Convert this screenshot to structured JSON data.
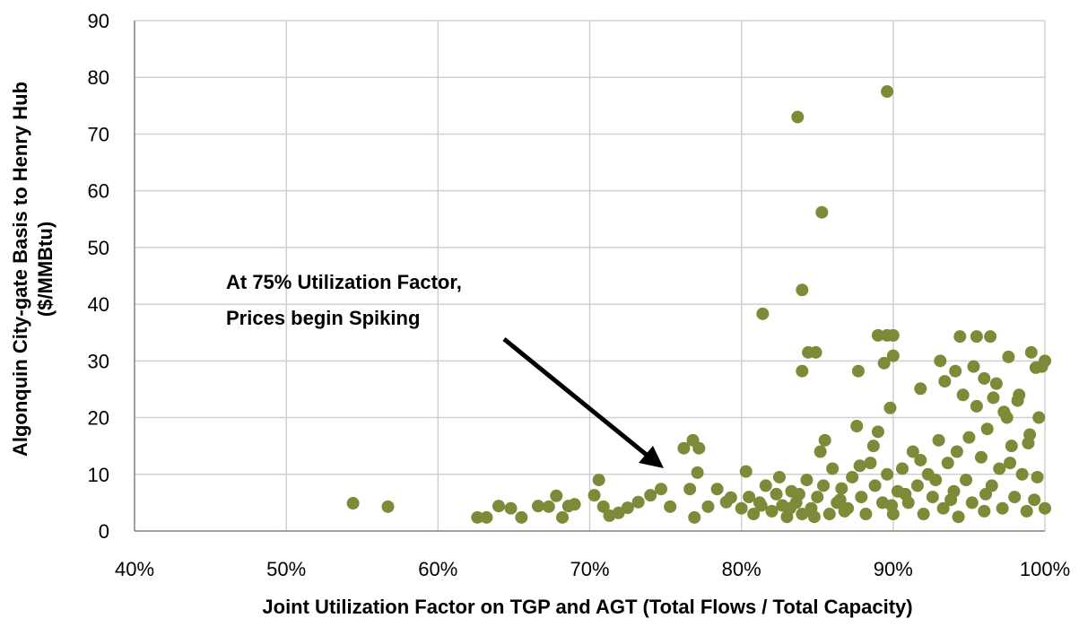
{
  "chart_data": {
    "type": "scatter",
    "xlabel": "Joint Utilization Factor on TGP and AGT (Total Flows / Total Capacity)",
    "ylabel": [
      "Algonquin City-gate Basis to Henry Hub",
      "($/MMBtu)"
    ],
    "annotation": [
      "At 75% Utilization Factor,",
      "Prices begin Spiking"
    ],
    "xlim": [
      40,
      100
    ],
    "ylim": [
      0,
      90
    ],
    "xticks": [
      {
        "value": 40,
        "label": "40%"
      },
      {
        "value": 50,
        "label": "50%"
      },
      {
        "value": 60,
        "label": "60%"
      },
      {
        "value": 70,
        "label": "70%"
      },
      {
        "value": 80,
        "label": "80%"
      },
      {
        "value": 90,
        "label": "90%"
      },
      {
        "value": 100,
        "label": "100%"
      }
    ],
    "yticks": [
      0,
      10,
      20,
      30,
      40,
      50,
      60,
      70,
      80,
      90
    ],
    "grid": true,
    "series": [
      {
        "color": "#7b8b38",
        "x": [
          89.6,
          83.7,
          85.3,
          84.0,
          81.4,
          84.0,
          84.4,
          84.9,
          89.0,
          89.6,
          90.0,
          89.4,
          90.0,
          89.8,
          87.7,
          91.8,
          93.1,
          93.4,
          94.4,
          95.5,
          96.4,
          97.6,
          99.1,
          99.4,
          96.0,
          94.1,
          54.4,
          56.7,
          62.6,
          63.2,
          64.0,
          64.8,
          65.5,
          66.6,
          67.3,
          67.8,
          68.2,
          68.6,
          69.0,
          70.3,
          70.6,
          70.9,
          71.3,
          71.9,
          72.5,
          73.2,
          74.0,
          74.7,
          75.3,
          76.2,
          76.8,
          77.2,
          77.1,
          76.6,
          76.9,
          77.8,
          78.4,
          79.0,
          79.3,
          80,
          80.5,
          80.8,
          81.2,
          81.6,
          82,
          82.3,
          82.7,
          83,
          83.3,
          83.6,
          84,
          84.3,
          84.6,
          85,
          85.2,
          85.5,
          85.8,
          86,
          86.3,
          86.6,
          87,
          87.3,
          87.6,
          87.9,
          88.2,
          88.5,
          88.7,
          89,
          89.3,
          89.6,
          90,
          90.3,
          90.6,
          91,
          91.3,
          91.6,
          92,
          92.3,
          92.6,
          93,
          93.3,
          93.6,
          94,
          94.3,
          94.6,
          94.8,
          95,
          95.2,
          95.5,
          95.8,
          96,
          96.2,
          96.5,
          96.8,
          97,
          97.2,
          97.5,
          97.8,
          98,
          98.2,
          98.5,
          98.8,
          99,
          99.3,
          99.6,
          99.8,
          100,
          100,
          95.3,
          96.6,
          97.3,
          98.3,
          98.9,
          92.8,
          90.8,
          89.9,
          88.8,
          86.8,
          85.4,
          83.8,
          82.5,
          81.3,
          94.2,
          93.8,
          97.7,
          96.1,
          99.5,
          91.8,
          87.8,
          86.5,
          84.8,
          83.2,
          80.3
        ],
        "values": [
          77.5,
          73,
          56.2,
          42.5,
          38.3,
          28.2,
          31.5,
          31.5,
          34.5,
          34.5,
          34.5,
          29.6,
          30.9,
          21.7,
          28.2,
          25.1,
          30,
          26.4,
          34.3,
          34.3,
          34.3,
          30.7,
          31.5,
          28.8,
          26.9,
          28.2,
          4.9,
          4.3,
          2.4,
          2.4,
          4.4,
          4,
          2.4,
          4.4,
          4.3,
          6.2,
          2.4,
          4.4,
          4.7,
          6.3,
          9,
          4.3,
          2.7,
          3.2,
          4.1,
          5.1,
          6.3,
          7.4,
          4.3,
          14.6,
          16,
          14.6,
          10.3,
          7.4,
          2.4,
          4.3,
          7.4,
          5.1,
          5.9,
          4,
          6,
          3,
          5,
          8,
          3.5,
          6.5,
          4.5,
          2.5,
          7,
          5,
          3,
          9,
          4,
          6,
          14,
          16,
          3,
          11,
          5,
          7.5,
          4,
          9.5,
          18.5,
          6,
          3,
          12,
          15,
          17.5,
          5,
          10,
          3,
          7,
          11,
          5,
          14,
          8,
          3,
          10,
          6,
          16,
          4,
          12,
          7,
          2.5,
          24,
          9,
          16.5,
          5,
          22,
          13,
          3.5,
          18,
          8,
          26,
          11,
          4,
          20,
          15,
          6,
          23,
          10,
          3.5,
          17,
          5.5,
          20,
          29,
          4,
          30,
          29,
          23.5,
          21,
          24,
          15.5,
          9,
          6.5,
          4.5,
          8,
          3.5,
          8,
          6.5,
          9.5,
          4.5,
          14,
          5.5,
          12,
          6.5,
          9.5,
          12.5,
          11.5,
          5.5,
          2.5,
          4,
          10.5
        ]
      }
    ]
  }
}
